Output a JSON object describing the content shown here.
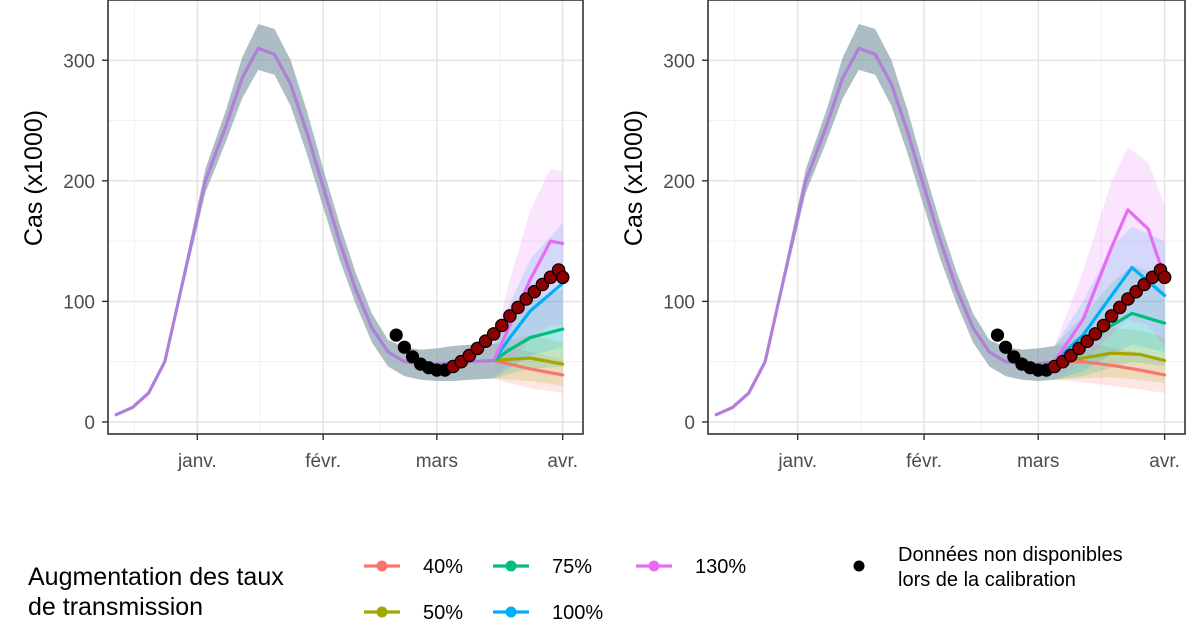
{
  "figure": {
    "legend_title_lines": [
      "Augmentation des taux",
      "de transmission"
    ],
    "obs_legend_lines": [
      "Données non disponibles",
      "lors de la calibration"
    ]
  },
  "chart_data": [
    {
      "type": "line",
      "panel": "left",
      "ylabel": "Cas (x1000)",
      "xlabel": "",
      "y_ticks": [
        0,
        100,
        200,
        300
      ],
      "ylim": [
        -10,
        350
      ],
      "x_ticks": [
        {
          "label": "janv.",
          "date": "2021-01-01"
        },
        {
          "label": "févr.",
          "date": "2021-02-01"
        },
        {
          "label": "mars",
          "date": "2021-03-01"
        },
        {
          "label": "avr.",
          "date": "2021-04-01"
        }
      ],
      "xlim": [
        "2020-12-10",
        "2021-04-06"
      ],
      "grid": true,
      "baseline": {
        "dates": [
          "2020-12-12",
          "2020-12-16",
          "2020-12-20",
          "2020-12-24",
          "2020-12-28",
          "2021-01-03",
          "2021-01-08",
          "2021-01-12",
          "2021-01-16",
          "2021-01-20",
          "2021-01-24",
          "2021-01-28",
          "2021-02-01",
          "2021-02-05",
          "2021-02-09",
          "2021-02-13",
          "2021-02-17",
          "2021-02-21",
          "2021-02-25",
          "2021-03-01",
          "2021-03-05",
          "2021-03-09",
          "2021-03-15"
        ],
        "values": [
          6,
          12,
          24,
          50,
          110,
          200,
          245,
          285,
          310,
          305,
          280,
          240,
          195,
          150,
          110,
          78,
          58,
          50,
          48,
          48,
          49,
          50,
          51
        ],
        "lower": [
          6,
          12,
          24,
          48,
          105,
          190,
          232,
          268,
          292,
          288,
          262,
          222,
          178,
          135,
          98,
          66,
          46,
          38,
          35,
          34,
          34,
          35,
          36
        ],
        "upper": [
          6,
          12,
          24,
          52,
          115,
          210,
          258,
          302,
          330,
          326,
          300,
          258,
          210,
          165,
          124,
          90,
          68,
          62,
          60,
          61,
          63,
          64,
          65
        ]
      },
      "series": [
        {
          "name": "40%",
          "color": "#f8766d",
          "dates": [
            "2021-03-15",
            "2021-03-19",
            "2021-03-24",
            "2021-04-01"
          ],
          "values": [
            51,
            48,
            44,
            39
          ],
          "lower": [
            36,
            32,
            28,
            24
          ],
          "upper": [
            65,
            62,
            58,
            52
          ]
        },
        {
          "name": "50%",
          "color": "#a3a500",
          "dates": [
            "2021-03-15",
            "2021-03-19",
            "2021-03-24",
            "2021-04-01"
          ],
          "values": [
            51,
            52,
            53,
            48
          ],
          "lower": [
            36,
            35,
            34,
            30
          ],
          "upper": [
            65,
            68,
            72,
            66
          ]
        },
        {
          "name": "75%",
          "color": "#00bf7d",
          "dates": [
            "2021-03-15",
            "2021-03-19",
            "2021-03-24",
            "2021-04-01"
          ],
          "values": [
            51,
            60,
            70,
            77
          ],
          "lower": [
            36,
            40,
            44,
            46
          ],
          "upper": [
            65,
            82,
            100,
            110
          ]
        },
        {
          "name": "100%",
          "color": "#00b0f6",
          "dates": [
            "2021-03-15",
            "2021-03-19",
            "2021-03-24",
            "2021-04-01"
          ],
          "values": [
            51,
            70,
            92,
            115
          ],
          "lower": [
            36,
            45,
            55,
            62
          ],
          "upper": [
            65,
            98,
            135,
            165
          ]
        },
        {
          "name": "130%",
          "color": "#e76bf3",
          "dates": [
            "2021-03-15",
            "2021-03-19",
            "2021-03-24",
            "2021-03-29",
            "2021-04-01"
          ],
          "values": [
            51,
            80,
            118,
            150,
            148
          ],
          "lower": [
            36,
            50,
            68,
            80,
            80
          ],
          "upper": [
            65,
            118,
            175,
            210,
            208
          ]
        }
      ],
      "observations": {
        "dates": [
          "2021-02-19",
          "2021-02-21",
          "2021-02-23",
          "2021-02-25",
          "2021-02-27",
          "2021-03-01",
          "2021-03-03",
          "2021-03-05",
          "2021-03-07",
          "2021-03-09",
          "2021-03-11",
          "2021-03-13",
          "2021-03-15",
          "2021-03-17",
          "2021-03-19",
          "2021-03-21",
          "2021-03-23",
          "2021-03-25",
          "2021-03-27",
          "2021-03-29",
          "2021-03-31",
          "2021-04-01"
        ],
        "values": [
          72,
          62,
          54,
          48,
          45,
          43,
          43,
          46,
          50,
          55,
          61,
          67,
          73,
          80,
          88,
          95,
          102,
          108,
          114,
          120,
          126,
          120
        ]
      }
    },
    {
      "type": "line",
      "panel": "right",
      "ylabel": "Cas (x1000)",
      "xlabel": "",
      "y_ticks": [
        0,
        100,
        200,
        300
      ],
      "ylim": [
        -10,
        350
      ],
      "x_ticks": [
        {
          "label": "janv.",
          "date": "2021-01-01"
        },
        {
          "label": "févr.",
          "date": "2021-02-01"
        },
        {
          "label": "mars",
          "date": "2021-03-01"
        },
        {
          "label": "avr.",
          "date": "2021-04-01"
        }
      ],
      "xlim": [
        "2020-12-10",
        "2021-04-06"
      ],
      "grid": true,
      "baseline": {
        "dates": [
          "2020-12-12",
          "2020-12-16",
          "2020-12-20",
          "2020-12-24",
          "2020-12-28",
          "2021-01-03",
          "2021-01-08",
          "2021-01-12",
          "2021-01-16",
          "2021-01-20",
          "2021-01-24",
          "2021-01-28",
          "2021-02-01",
          "2021-02-05",
          "2021-02-09",
          "2021-02-13",
          "2021-02-17",
          "2021-02-21",
          "2021-02-25",
          "2021-03-01",
          "2021-03-05"
        ],
        "values": [
          6,
          12,
          24,
          50,
          110,
          200,
          245,
          285,
          310,
          305,
          280,
          240,
          195,
          150,
          110,
          78,
          58,
          50,
          48,
          48,
          50
        ],
        "lower": [
          6,
          12,
          24,
          48,
          105,
          190,
          232,
          268,
          292,
          288,
          262,
          222,
          178,
          135,
          98,
          66,
          46,
          38,
          35,
          34,
          35
        ],
        "upper": [
          6,
          12,
          24,
          52,
          115,
          210,
          258,
          302,
          330,
          326,
          300,
          258,
          210,
          165,
          124,
          90,
          68,
          62,
          60,
          61,
          63
        ]
      },
      "series": [
        {
          "name": "40%",
          "color": "#f8766d",
          "dates": [
            "2021-03-05",
            "2021-03-12",
            "2021-03-19",
            "2021-03-26",
            "2021-04-01"
          ],
          "values": [
            50,
            50,
            47,
            43,
            39
          ],
          "lower": [
            35,
            33,
            30,
            27,
            24
          ],
          "upper": [
            63,
            66,
            62,
            57,
            52
          ]
        },
        {
          "name": "50%",
          "color": "#a3a500",
          "dates": [
            "2021-03-05",
            "2021-03-12",
            "2021-03-19",
            "2021-03-26",
            "2021-04-01"
          ],
          "values": [
            50,
            53,
            57,
            56,
            51
          ],
          "lower": [
            35,
            36,
            37,
            35,
            32
          ],
          "upper": [
            63,
            72,
            78,
            76,
            70
          ]
        },
        {
          "name": "75%",
          "color": "#00bf7d",
          "dates": [
            "2021-03-05",
            "2021-03-12",
            "2021-03-19",
            "2021-03-24",
            "2021-04-01"
          ],
          "values": [
            50,
            62,
            80,
            90,
            82
          ],
          "lower": [
            35,
            38,
            45,
            50,
            46
          ],
          "upper": [
            63,
            88,
            115,
            130,
            120
          ]
        },
        {
          "name": "100%",
          "color": "#00b0f6",
          "dates": [
            "2021-03-05",
            "2021-03-12",
            "2021-03-19",
            "2021-03-24",
            "2021-04-01"
          ],
          "values": [
            50,
            72,
            105,
            128,
            105
          ],
          "lower": [
            35,
            42,
            56,
            64,
            58
          ],
          "upper": [
            63,
            100,
            145,
            162,
            150
          ]
        },
        {
          "name": "130%",
          "color": "#e76bf3",
          "dates": [
            "2021-03-05",
            "2021-03-12",
            "2021-03-19",
            "2021-03-23",
            "2021-03-28",
            "2021-04-01"
          ],
          "values": [
            50,
            85,
            145,
            176,
            160,
            120
          ],
          "lower": [
            35,
            50,
            72,
            85,
            80,
            62
          ],
          "upper": [
            63,
            125,
            200,
            228,
            215,
            180
          ]
        }
      ],
      "observations": {
        "dates": [
          "2021-02-19",
          "2021-02-21",
          "2021-02-23",
          "2021-02-25",
          "2021-02-27",
          "2021-03-01",
          "2021-03-03",
          "2021-03-05",
          "2021-03-07",
          "2021-03-09",
          "2021-03-11",
          "2021-03-13",
          "2021-03-15",
          "2021-03-17",
          "2021-03-19",
          "2021-03-21",
          "2021-03-23",
          "2021-03-25",
          "2021-03-27",
          "2021-03-29",
          "2021-03-31",
          "2021-04-01"
        ],
        "values": [
          72,
          62,
          54,
          48,
          45,
          43,
          43,
          46,
          50,
          55,
          61,
          67,
          73,
          80,
          88,
          95,
          102,
          108,
          114,
          120,
          126,
          120
        ]
      }
    }
  ]
}
